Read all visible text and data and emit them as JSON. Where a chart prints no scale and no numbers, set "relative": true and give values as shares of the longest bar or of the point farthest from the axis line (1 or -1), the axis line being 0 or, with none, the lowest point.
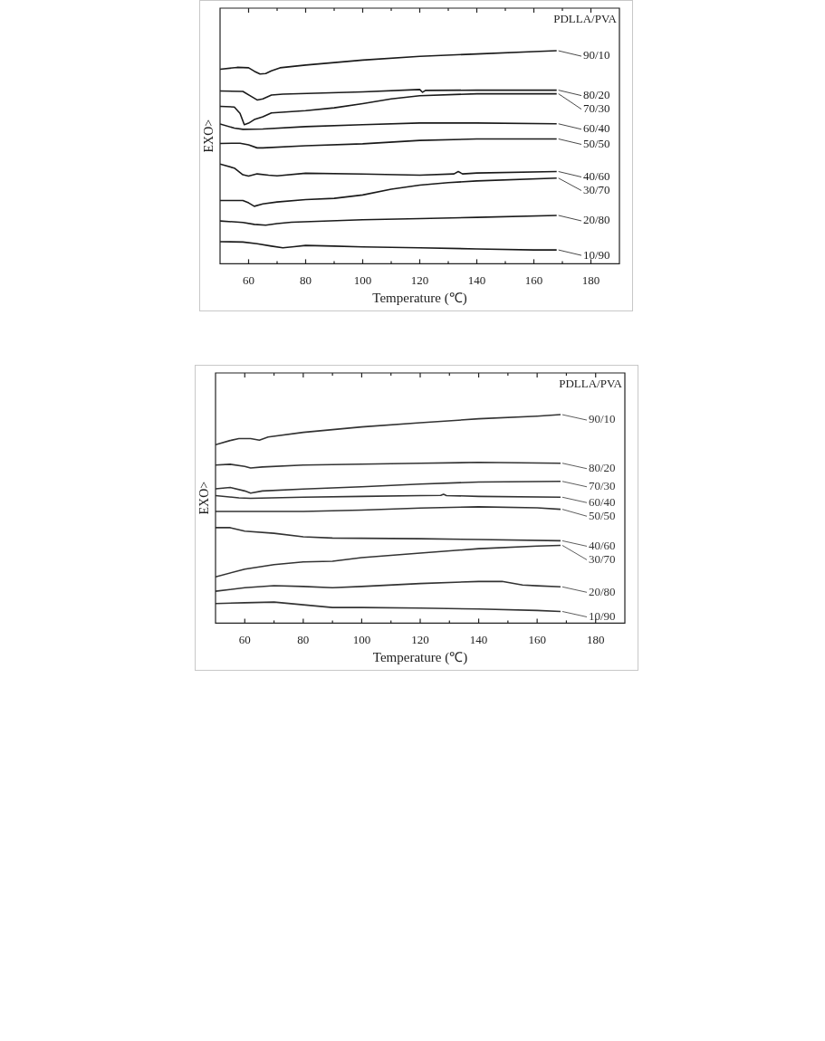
{
  "chart_data": [
    {
      "type": "line",
      "xlabel": "Temperature (℃)",
      "ylabel": "EXO>",
      "legend_title": "PDLLA/PVA",
      "legend": "right",
      "relative": true,
      "marker": "none",
      "xlim": [
        50,
        190
      ],
      "xticks": [
        60,
        {
          "value": 70,
          "label": null
        },
        80,
        {
          "value": 90,
          "label": null
        },
        100,
        {
          "value": 110,
          "label": null
        },
        120,
        {
          "value": 130,
          "label": null
        },
        140,
        {
          "value": 150,
          "label": null
        },
        160,
        {
          "value": 170,
          "label": null
        },
        180
      ],
      "series": [
        {
          "name": "90/10",
          "color": "#1a1a1a",
          "x": [
            50,
            56,
            60,
            62,
            64,
            66,
            68,
            71,
            80,
            100,
            120,
            140,
            160,
            168
          ],
          "values": [
            0.913,
            0.922,
            0.92,
            0.904,
            0.891,
            0.893,
            0.906,
            0.92,
            0.933,
            0.956,
            0.974,
            0.985,
            0.996,
            1
          ]
        },
        {
          "name": "80/20",
          "color": "#1a1a1a",
          "x": [
            50,
            58,
            61,
            63,
            65,
            68,
            72,
            100,
            120,
            121,
            122,
            140,
            168
          ],
          "values": [
            0.811,
            0.809,
            0.785,
            0.769,
            0.774,
            0.792,
            0.796,
            0.807,
            0.818,
            0.805,
            0.814,
            0.815,
            0.815
          ]
        },
        {
          "name": "70/30",
          "color": "#1a1a1a",
          "x": [
            50,
            55,
            57,
            58.5,
            60,
            62,
            65,
            68,
            80,
            90,
            100,
            110,
            120,
            140,
            168
          ],
          "values": [
            0.739,
            0.736,
            0.706,
            0.653,
            0.66,
            0.677,
            0.69,
            0.708,
            0.719,
            0.732,
            0.752,
            0.774,
            0.789,
            0.798,
            0.798
          ]
        },
        {
          "name": "60/40",
          "color": "#1a1a1a",
          "x": [
            50,
            55,
            58,
            65,
            80,
            100,
            120,
            140,
            168
          ],
          "values": [
            0.656,
            0.637,
            0.631,
            0.633,
            0.644,
            0.653,
            0.661,
            0.661,
            0.657
          ]
        },
        {
          "name": "50/50",
          "color": "#1a1a1a",
          "x": [
            50,
            57,
            60,
            63,
            65,
            80,
            100,
            120,
            140,
            168
          ],
          "values": [
            0.565,
            0.566,
            0.558,
            0.544,
            0.544,
            0.554,
            0.563,
            0.579,
            0.586,
            0.586
          ]
        },
        {
          "name": "40/60",
          "color": "#1a1a1a",
          "x": [
            50,
            55,
            58,
            60,
            63,
            67,
            70,
            80,
            100,
            120,
            132,
            133.5,
            135,
            140,
            168
          ],
          "values": [
            0.468,
            0.449,
            0.418,
            0.412,
            0.422,
            0.416,
            0.413,
            0.425,
            0.421,
            0.416,
            0.422,
            0.433,
            0.422,
            0.426,
            0.433
          ]
        },
        {
          "name": "30/70",
          "color": "#1a1a1a",
          "x": [
            50,
            58,
            60,
            62,
            65,
            70,
            80,
            90,
            100,
            110,
            120,
            130,
            140,
            168
          ],
          "values": [
            0.297,
            0.297,
            0.286,
            0.27,
            0.281,
            0.29,
            0.301,
            0.307,
            0.323,
            0.35,
            0.369,
            0.381,
            0.389,
            0.402
          ]
        },
        {
          "name": "20/80",
          "color": "#1a1a1a",
          "x": [
            50,
            58,
            62,
            66,
            70,
            75,
            100,
            120,
            140,
            168
          ],
          "values": [
            0.201,
            0.194,
            0.185,
            0.181,
            0.189,
            0.195,
            0.207,
            0.212,
            0.218,
            0.227
          ]
        },
        {
          "name": "10/90",
          "color": "#1a1a1a",
          "x": [
            50,
            58,
            63,
            68,
            72,
            76,
            80,
            90,
            100,
            120,
            140,
            160,
            168
          ],
          "values": [
            0.104,
            0.102,
            0.094,
            0.083,
            0.075,
            0.08,
            0.086,
            0.083,
            0.079,
            0.075,
            0.07,
            0.065,
            0.065
          ]
        }
      ]
    },
    {
      "type": "line",
      "xlabel": "Temperature (℃)",
      "ylabel": "EXO>",
      "legend_title": "PDLLA/PVA",
      "legend": "right",
      "relative": true,
      "marker": "none",
      "xlim": [
        50,
        190
      ],
      "xticks": [
        60,
        {
          "value": 70,
          "label": null
        },
        80,
        {
          "value": 90,
          "label": null
        },
        100,
        {
          "value": 110,
          "label": null
        },
        120,
        {
          "value": 130,
          "label": null
        },
        140,
        {
          "value": 150,
          "label": null
        },
        160,
        {
          "value": 170,
          "label": null
        },
        180
      ],
      "series": [
        {
          "name": "90/10",
          "color": "#333333",
          "x": [
            50,
            55,
            58,
            62,
            65,
            68,
            80,
            100,
            120,
            140,
            160,
            168
          ],
          "values": [
            0.856,
            0.876,
            0.885,
            0.885,
            0.878,
            0.893,
            0.915,
            0.941,
            0.961,
            0.98,
            0.993,
            1
          ]
        },
        {
          "name": "80/20",
          "color": "#333333",
          "x": [
            50,
            55,
            60,
            62,
            66,
            80,
            120,
            140,
            168
          ],
          "values": [
            0.758,
            0.762,
            0.752,
            0.744,
            0.749,
            0.758,
            0.767,
            0.771,
            0.767
          ]
        },
        {
          "name": "70/30",
          "color": "#333333",
          "x": [
            50,
            55,
            60,
            62,
            66,
            80,
            100,
            120,
            140,
            168
          ],
          "values": [
            0.644,
            0.651,
            0.634,
            0.624,
            0.634,
            0.643,
            0.654,
            0.667,
            0.677,
            0.68
          ]
        },
        {
          "name": "60/40",
          "color": "#333333",
          "x": [
            50,
            58,
            62,
            80,
            100,
            120,
            127,
            128,
            129,
            140,
            168
          ],
          "values": [
            0.612,
            0.601,
            0.599,
            0.604,
            0.608,
            0.612,
            0.613,
            0.618,
            0.612,
            0.608,
            0.604
          ]
        },
        {
          "name": "50/50",
          "color": "#333333",
          "x": [
            50,
            80,
            100,
            120,
            140,
            160,
            168
          ],
          "values": [
            0.536,
            0.536,
            0.542,
            0.552,
            0.558,
            0.553,
            0.546
          ]
        },
        {
          "name": "40/60",
          "color": "#333333",
          "x": [
            50,
            55,
            60,
            70,
            80,
            90,
            120,
            140,
            168
          ],
          "values": [
            0.458,
            0.458,
            0.441,
            0.431,
            0.414,
            0.408,
            0.405,
            0.401,
            0.395
          ]
        },
        {
          "name": "30/70",
          "color": "#333333",
          "x": [
            50,
            60,
            70,
            80,
            90,
            100,
            120,
            140,
            160,
            168
          ],
          "values": [
            0.222,
            0.259,
            0.281,
            0.294,
            0.297,
            0.314,
            0.336,
            0.357,
            0.37,
            0.373
          ]
        },
        {
          "name": "20/80",
          "color": "#333333",
          "x": [
            50,
            60,
            70,
            80,
            90,
            100,
            120,
            140,
            148,
            155,
            160,
            168
          ],
          "values": [
            0.153,
            0.17,
            0.18,
            0.176,
            0.17,
            0.176,
            0.19,
            0.2,
            0.2,
            0.183,
            0.179,
            0.174
          ]
        },
        {
          "name": "10/90",
          "color": "#333333",
          "x": [
            50,
            60,
            70,
            80,
            90,
            100,
            120,
            140,
            160,
            168
          ],
          "values": [
            0.094,
            0.098,
            0.101,
            0.088,
            0.075,
            0.075,
            0.072,
            0.068,
            0.061,
            0.056
          ]
        }
      ]
    }
  ]
}
